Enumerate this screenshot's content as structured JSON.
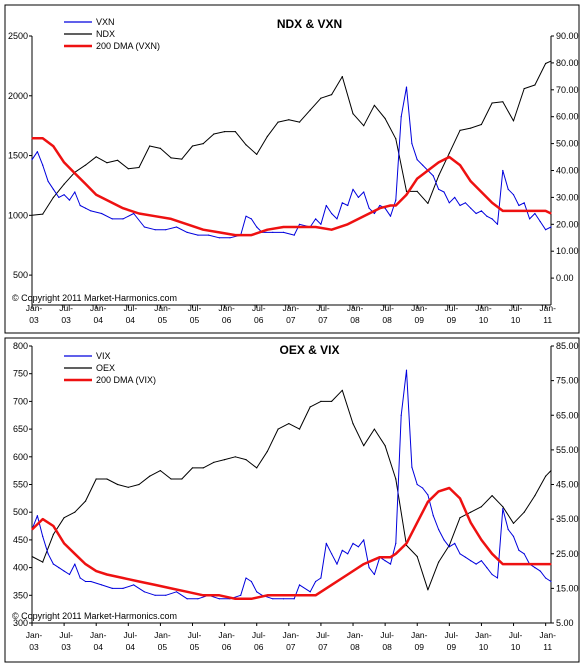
{
  "chart_data": [
    {
      "type": "line",
      "title": "NDX & VXN",
      "copyright": "© Copyright 2011 Market-Harmonics.com",
      "x_ticks": [
        "Jan-\n03",
        "Jul-\n03",
        "Jan-\n04",
        "Jul-\n04",
        "Jan-\n05",
        "Jul-\n05",
        "Jan-\n06",
        "Jul-\n06",
        "Jan-\n07",
        "Jul-\n07",
        "Jan-\n08",
        "Jul-\n08",
        "Jan-\n09",
        "Jul-\n09",
        "Jan-\n10",
        "Jul-\n10",
        "Jan-\n11"
      ],
      "x_range": [
        "2003-01",
        "2011-02"
      ],
      "left_axis": {
        "ticks": [
          "500",
          "1000",
          "1500",
          "2000",
          "2500"
        ],
        "ylim": [
          250,
          2500
        ]
      },
      "right_axis": {
        "ticks": [
          "0.00",
          "10.00",
          "20.00",
          "30.00",
          "40.00",
          "50.00",
          "60.00",
          "70.00",
          "80.00",
          "90.00"
        ],
        "ylim": [
          -10,
          90
        ]
      },
      "series": [
        {
          "name": "VXN",
          "color": "#0000dd",
          "axis": "right",
          "x": [
            "2003-01",
            "2003-02",
            "2003-03",
            "2003-04",
            "2003-05",
            "2003-06",
            "2003-07",
            "2003-08",
            "2003-09",
            "2003-10",
            "2003-11",
            "2003-12",
            "2004-02",
            "2004-04",
            "2004-06",
            "2004-08",
            "2004-10",
            "2004-12",
            "2005-02",
            "2005-04",
            "2005-06",
            "2005-08",
            "2005-10",
            "2005-12",
            "2006-02",
            "2006-04",
            "2006-05",
            "2006-06",
            "2006-07",
            "2006-08",
            "2006-10",
            "2006-12",
            "2007-02",
            "2007-03",
            "2007-05",
            "2007-06",
            "2007-07",
            "2007-08",
            "2007-09",
            "2007-10",
            "2007-11",
            "2007-12",
            "2008-01",
            "2008-02",
            "2008-03",
            "2008-04",
            "2008-05",
            "2008-06",
            "2008-07",
            "2008-08",
            "2008-09",
            "2008-10",
            "2008-11",
            "2008-12",
            "2009-01",
            "2009-02",
            "2009-03",
            "2009-04",
            "2009-05",
            "2009-06",
            "2009-07",
            "2009-08",
            "2009-09",
            "2009-10",
            "2009-11",
            "2009-12",
            "2010-01",
            "2010-02",
            "2010-03",
            "2010-04",
            "2010-05",
            "2010-06",
            "2010-07",
            "2010-08",
            "2010-09",
            "2010-10",
            "2010-11",
            "2010-12",
            "2011-01",
            "2011-02"
          ],
          "values": [
            44,
            47,
            42,
            36,
            33,
            30,
            31,
            29,
            32,
            27,
            26,
            25,
            24,
            22,
            22,
            24,
            19,
            18,
            18,
            19,
            17,
            16,
            16,
            15,
            15,
            16,
            23,
            22,
            19,
            17,
            17,
            17,
            16,
            20,
            19,
            22,
            20,
            27,
            24,
            22,
            28,
            27,
            33,
            30,
            32,
            26,
            24,
            27,
            26,
            23,
            29,
            60,
            71,
            50,
            44,
            42,
            40,
            38,
            33,
            32,
            28,
            30,
            27,
            28,
            26,
            24,
            25,
            23,
            22,
            20,
            40,
            33,
            31,
            27,
            28,
            22,
            24,
            21,
            18,
            19
          ]
        },
        {
          "name": "NDX",
          "color": "#000000",
          "axis": "left",
          "x": [
            "2003-01",
            "2003-03",
            "2003-05",
            "2003-07",
            "2003-09",
            "2003-11",
            "2004-01",
            "2004-03",
            "2004-05",
            "2004-07",
            "2004-09",
            "2004-11",
            "2005-01",
            "2005-03",
            "2005-05",
            "2005-07",
            "2005-09",
            "2005-11",
            "2006-01",
            "2006-03",
            "2006-05",
            "2006-07",
            "2006-09",
            "2006-11",
            "2007-01",
            "2007-03",
            "2007-05",
            "2007-07",
            "2007-09",
            "2007-11",
            "2008-01",
            "2008-03",
            "2008-05",
            "2008-07",
            "2008-09",
            "2008-11",
            "2009-01",
            "2009-03",
            "2009-05",
            "2009-07",
            "2009-09",
            "2009-11",
            "2010-01",
            "2010-03",
            "2010-05",
            "2010-07",
            "2010-09",
            "2010-11",
            "2011-01",
            "2011-02"
          ],
          "values": [
            1000,
            1010,
            1150,
            1260,
            1360,
            1420,
            1490,
            1440,
            1460,
            1390,
            1400,
            1580,
            1560,
            1480,
            1470,
            1580,
            1600,
            1680,
            1700,
            1700,
            1590,
            1510,
            1660,
            1780,
            1800,
            1780,
            1880,
            1980,
            2010,
            2160,
            1850,
            1750,
            1920,
            1810,
            1640,
            1200,
            1200,
            1100,
            1330,
            1520,
            1710,
            1730,
            1760,
            1940,
            1950,
            1790,
            2060,
            2090,
            2270,
            2290
          ]
        },
        {
          "name": "200 DMA (VXN)",
          "color": "#ee1111",
          "axis": "right",
          "x": [
            "2003-01",
            "2003-03",
            "2003-05",
            "2003-07",
            "2003-09",
            "2003-11",
            "2004-01",
            "2004-03",
            "2004-06",
            "2004-09",
            "2004-12",
            "2005-03",
            "2005-06",
            "2005-09",
            "2005-12",
            "2006-03",
            "2006-06",
            "2006-09",
            "2006-12",
            "2007-03",
            "2007-06",
            "2007-09",
            "2007-12",
            "2008-03",
            "2008-06",
            "2008-08",
            "2008-09",
            "2008-11",
            "2009-01",
            "2009-03",
            "2009-05",
            "2009-07",
            "2009-09",
            "2009-11",
            "2010-01",
            "2010-03",
            "2010-05",
            "2010-07",
            "2010-09",
            "2010-11",
            "2011-01",
            "2011-02"
          ],
          "values": [
            52,
            52,
            49,
            43,
            39,
            35,
            31,
            29,
            26,
            24,
            23,
            22,
            20,
            18,
            17,
            16,
            16,
            18,
            19,
            19,
            19,
            18,
            20,
            23,
            26,
            27,
            27,
            31,
            37,
            40,
            43,
            45,
            42,
            36,
            32,
            28,
            25,
            25,
            25,
            25,
            25,
            24
          ]
        }
      ]
    },
    {
      "type": "line",
      "title": "OEX & VIX",
      "copyright": "© Copyright 2011 Market-Harmonics.com",
      "x_ticks": [
        "Jan-\n03",
        "Jul-\n03",
        "Jan-\n04",
        "Jul-\n04",
        "Jan-\n05",
        "Jul-\n05",
        "Jan-\n06",
        "Jul-\n06",
        "Jan-\n07",
        "Jul-\n07",
        "Jan-\n08",
        "Jul-\n08",
        "Jan-\n09",
        "Jul-\n09",
        "Jan-\n10",
        "Jul-\n10",
        "Jan-\n11"
      ],
      "x_range": [
        "2003-01",
        "2011-02"
      ],
      "left_axis": {
        "ticks": [
          "300",
          "350",
          "400",
          "450",
          "500",
          "550",
          "600",
          "650",
          "700",
          "750",
          "800"
        ],
        "ylim": [
          300,
          800
        ]
      },
      "right_axis": {
        "ticks": [
          "5.00",
          "15.00",
          "25.00",
          "35.00",
          "45.00",
          "55.00",
          "65.00",
          "75.00",
          "85.00"
        ],
        "ylim": [
          5,
          85
        ]
      },
      "series": [
        {
          "name": "VIX",
          "color": "#0000dd",
          "axis": "right",
          "x": [
            "2003-01",
            "2003-02",
            "2003-03",
            "2003-04",
            "2003-05",
            "2003-06",
            "2003-07",
            "2003-08",
            "2003-09",
            "2003-10",
            "2003-11",
            "2003-12",
            "2004-02",
            "2004-04",
            "2004-06",
            "2004-08",
            "2004-10",
            "2004-12",
            "2005-02",
            "2005-04",
            "2005-06",
            "2005-08",
            "2005-10",
            "2005-12",
            "2006-02",
            "2006-04",
            "2006-05",
            "2006-06",
            "2006-07",
            "2006-08",
            "2006-10",
            "2006-12",
            "2007-02",
            "2007-03",
            "2007-05",
            "2007-06",
            "2007-07",
            "2007-08",
            "2007-09",
            "2007-10",
            "2007-11",
            "2007-12",
            "2008-01",
            "2008-02",
            "2008-03",
            "2008-04",
            "2008-05",
            "2008-06",
            "2008-07",
            "2008-08",
            "2008-09",
            "2008-10",
            "2008-11",
            "2008-12",
            "2009-01",
            "2009-02",
            "2009-03",
            "2009-04",
            "2009-05",
            "2009-06",
            "2009-07",
            "2009-08",
            "2009-09",
            "2009-10",
            "2009-11",
            "2009-12",
            "2010-01",
            "2010-02",
            "2010-03",
            "2010-04",
            "2010-05",
            "2010-06",
            "2010-07",
            "2010-08",
            "2010-09",
            "2010-10",
            "2010-11",
            "2010-12",
            "2011-01",
            "2011-02"
          ],
          "values": [
            32,
            36,
            30,
            25,
            22,
            21,
            20,
            19,
            22,
            18,
            17,
            17,
            16,
            15,
            15,
            16,
            14,
            13,
            13,
            14,
            12,
            12,
            13,
            12,
            12,
            13,
            18,
            17,
            14,
            13,
            12,
            12,
            12,
            16,
            14,
            17,
            18,
            28,
            25,
            22,
            26,
            25,
            28,
            27,
            29,
            21,
            19,
            24,
            23,
            22,
            28,
            65,
            78,
            50,
            45,
            44,
            42,
            36,
            32,
            29,
            27,
            28,
            25,
            24,
            23,
            22,
            23,
            21,
            19,
            18,
            38,
            32,
            30,
            26,
            25,
            22,
            21,
            20,
            18,
            17
          ]
        },
        {
          "name": "OEX",
          "color": "#000000",
          "axis": "left",
          "x": [
            "2003-01",
            "2003-03",
            "2003-05",
            "2003-07",
            "2003-09",
            "2003-11",
            "2004-01",
            "2004-03",
            "2004-05",
            "2004-07",
            "2004-09",
            "2004-11",
            "2005-01",
            "2005-03",
            "2005-05",
            "2005-07",
            "2005-09",
            "2005-11",
            "2006-01",
            "2006-03",
            "2006-05",
            "2006-07",
            "2006-09",
            "2006-11",
            "2007-01",
            "2007-03",
            "2007-05",
            "2007-07",
            "2007-09",
            "2007-11",
            "2008-01",
            "2008-03",
            "2008-05",
            "2008-07",
            "2008-09",
            "2008-11",
            "2009-01",
            "2009-03",
            "2009-05",
            "2009-07",
            "2009-09",
            "2009-11",
            "2010-01",
            "2010-03",
            "2010-05",
            "2010-07",
            "2010-09",
            "2010-11",
            "2011-01",
            "2011-02"
          ],
          "values": [
            420,
            410,
            460,
            490,
            500,
            520,
            560,
            560,
            550,
            545,
            550,
            565,
            575,
            560,
            560,
            580,
            580,
            590,
            595,
            600,
            595,
            580,
            610,
            650,
            660,
            650,
            690,
            700,
            700,
            720,
            660,
            620,
            650,
            620,
            560,
            440,
            420,
            360,
            410,
            440,
            490,
            500,
            510,
            530,
            510,
            480,
            500,
            530,
            565,
            575
          ]
        },
        {
          "name": "200 DMA (VIX)",
          "color": "#ee1111",
          "axis": "right",
          "x": [
            "2003-01",
            "2003-03",
            "2003-05",
            "2003-07",
            "2003-09",
            "2003-11",
            "2004-01",
            "2004-03",
            "2004-06",
            "2004-09",
            "2004-12",
            "2005-03",
            "2005-06",
            "2005-09",
            "2005-12",
            "2006-03",
            "2006-06",
            "2006-09",
            "2006-12",
            "2007-03",
            "2007-06",
            "2007-09",
            "2007-12",
            "2008-03",
            "2008-06",
            "2008-08",
            "2008-09",
            "2008-11",
            "2009-01",
            "2009-03",
            "2009-05",
            "2009-07",
            "2009-09",
            "2009-11",
            "2010-01",
            "2010-03",
            "2010-05",
            "2010-07",
            "2010-09",
            "2010-11",
            "2011-01",
            "2011-02"
          ],
          "values": [
            32,
            35,
            33,
            28,
            25,
            22,
            20,
            19,
            18,
            17,
            16,
            15,
            14,
            13,
            13,
            12,
            12,
            13,
            13,
            13,
            13,
            16,
            19,
            22,
            24,
            24,
            25,
            28,
            34,
            40,
            43,
            44,
            41,
            34,
            29,
            25,
            22,
            22,
            22,
            22,
            22,
            22
          ]
        }
      ]
    }
  ]
}
